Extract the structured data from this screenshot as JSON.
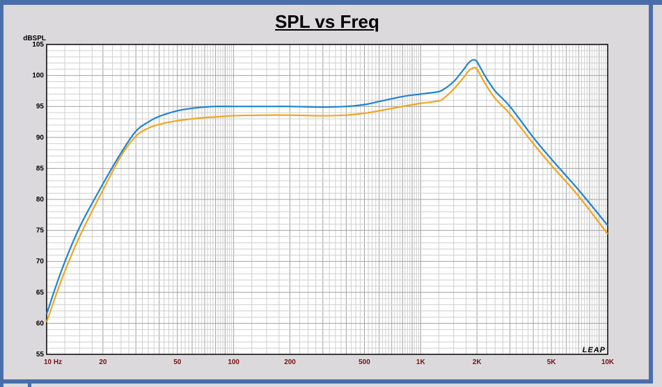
{
  "chart_data": {
    "type": "line",
    "title": "SPL vs Freq",
    "ylabel": "dBSPL",
    "xlabel": "",
    "xscale": "log",
    "xlim": [
      10,
      10000
    ],
    "ylim": [
      55,
      105
    ],
    "grid": true,
    "y_ticks": [
      55,
      60,
      65,
      70,
      75,
      80,
      85,
      90,
      95,
      100,
      105
    ],
    "y_tick_labels": [
      "55",
      "60",
      "65",
      "70",
      "75",
      "80",
      "85",
      "90",
      "95",
      "100",
      "105"
    ],
    "x_ticks": [
      10,
      20,
      50,
      100,
      200,
      500,
      1000,
      2000,
      5000,
      10000
    ],
    "x_tick_labels": [
      "10 Hz",
      "20",
      "50",
      "100",
      "200",
      "500",
      "1K",
      "2K",
      "5K",
      "10K"
    ],
    "watermark": "LEAP",
    "series": [
      {
        "color": "#1e83d3",
        "x": [
          10,
          12,
          15,
          20,
          25,
          30,
          35,
          40,
          50,
          60,
          70,
          80,
          100,
          150,
          200,
          300,
          400,
          500,
          600,
          800,
          1000,
          1200,
          1300,
          1500,
          1700,
          1800,
          1900,
          2000,
          2200,
          2500,
          3000,
          4000,
          5000,
          7000,
          10000
        ],
        "y": [
          61.5,
          68.5,
          75.5,
          82.5,
          87.5,
          91.0,
          92.5,
          93.4,
          94.3,
          94.7,
          94.9,
          95.0,
          95.0,
          95.0,
          95.0,
          94.9,
          95.0,
          95.3,
          95.8,
          96.6,
          97.0,
          97.3,
          97.6,
          99.0,
          101.0,
          102.0,
          102.5,
          102.2,
          100.0,
          97.5,
          95.0,
          90.0,
          86.5,
          81.5,
          75.8
        ]
      },
      {
        "color": "#f2a51a",
        "x": [
          10,
          12,
          15,
          20,
          25,
          30,
          35,
          40,
          50,
          60,
          70,
          80,
          100,
          150,
          200,
          300,
          400,
          500,
          600,
          800,
          1000,
          1200,
          1300,
          1500,
          1700,
          1800,
          1900,
          2000,
          2200,
          2500,
          3000,
          4000,
          5000,
          7000,
          10000
        ],
        "y": [
          60.2,
          67.0,
          74.0,
          81.5,
          87.0,
          90.2,
          91.5,
          92.1,
          92.7,
          93.0,
          93.2,
          93.3,
          93.5,
          93.6,
          93.6,
          93.5,
          93.6,
          93.9,
          94.3,
          95.0,
          95.5,
          95.8,
          96.1,
          97.8,
          99.7,
          100.7,
          101.2,
          101.0,
          98.8,
          96.3,
          93.8,
          89.0,
          85.5,
          80.5,
          74.4
        ]
      }
    ]
  }
}
